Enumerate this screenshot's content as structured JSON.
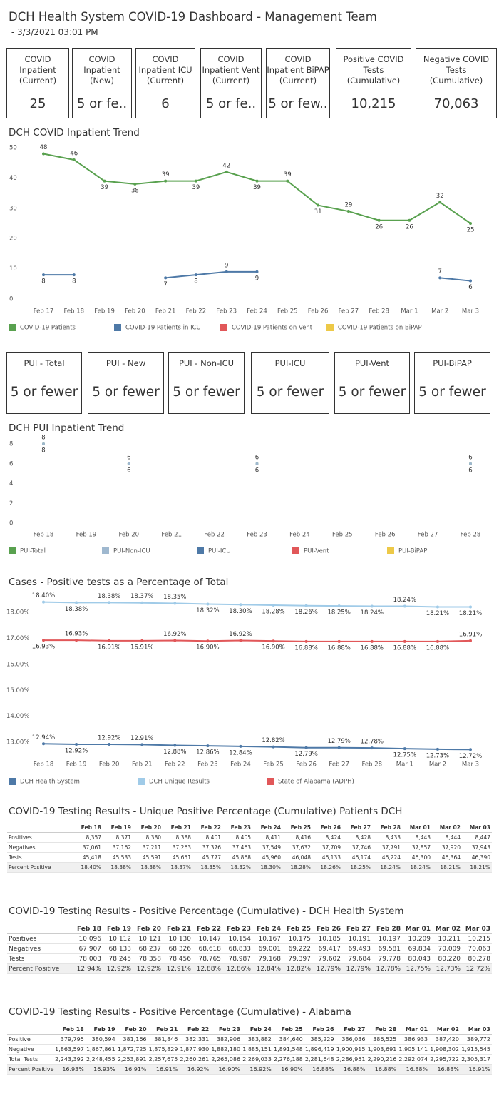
{
  "header": {
    "title": "DCH Health System COVID-19 Dashboard - Management Team",
    "subtitle": " - 3/3/2021 03:01 PM"
  },
  "kpi_cards": [
    {
      "label_lines": [
        "COVID",
        "Inpatient",
        "(Current)"
      ],
      "value": "25"
    },
    {
      "label_lines": [
        "COVID",
        "Inpatient",
        "(New)"
      ],
      "value": "5 or fe.."
    },
    {
      "label_lines": [
        "COVID",
        "Inpatient ICU",
        "(Current)"
      ],
      "value": "6"
    },
    {
      "label_lines": [
        "COVID",
        "Inpatient Vent",
        "(Current)"
      ],
      "value": "5 or fe.."
    },
    {
      "label_lines": [
        "COVID",
        "Inpatient BiPAP",
        "(Current)"
      ],
      "value": "5 or few.."
    },
    {
      "label_lines": [
        "Positive COVID",
        "Tests",
        "(Cumulative)"
      ],
      "value": "10,215"
    },
    {
      "label_lines": [
        "Negative COVID",
        "Tests",
        "(Cumulative)"
      ],
      "value": "70,063"
    }
  ],
  "pui_cards": [
    {
      "label": "PUI - Total",
      "value": "5 or fewer"
    },
    {
      "label": "PUI - New",
      "value": "5 or fewer"
    },
    {
      "label": "PUI - Non-ICU",
      "value": "5 or fewer"
    },
    {
      "label": "PUI-ICU",
      "value": "5 or fewer"
    },
    {
      "label": "PUI-Vent",
      "value": "5 or fewer"
    },
    {
      "label": "PUI-BiPAP",
      "value": "5 or fewer"
    }
  ],
  "chart_data": [
    {
      "type": "line",
      "title": "DCH COVID Inpatient Trend",
      "categories": [
        "Feb 17",
        "Feb 18",
        "Feb 19",
        "Feb 20",
        "Feb 21",
        "Feb 22",
        "Feb 23",
        "Feb 24",
        "Feb 25",
        "Feb 26",
        "Feb 27",
        "Feb 28",
        "Mar 1",
        "Mar 2",
        "Mar 3"
      ],
      "series": [
        {
          "name": "COVID-19 Patients",
          "color": "#59a14f",
          "values": [
            48,
            46,
            39,
            38,
            39,
            39,
            42,
            39,
            39,
            31,
            29,
            26,
            26,
            32,
            25
          ]
        },
        {
          "name": "COVID-19 Patients in ICU",
          "color": "#4e79a7",
          "values": [
            8,
            8,
            null,
            null,
            7,
            8,
            9,
            9,
            null,
            null,
            null,
            null,
            null,
            7,
            6
          ]
        },
        {
          "name": "COVID-19 Patients on Vent",
          "color": "#e15759",
          "values": [
            null,
            null,
            null,
            null,
            null,
            null,
            null,
            null,
            null,
            null,
            null,
            null,
            null,
            null,
            null
          ]
        },
        {
          "name": "COVID-19 Patients on BiPAP",
          "color": "#edc948",
          "values": [
            null,
            null,
            null,
            null,
            null,
            null,
            null,
            null,
            null,
            null,
            null,
            null,
            null,
            null,
            null
          ]
        }
      ],
      "ylim": [
        0,
        50
      ],
      "yticks": [
        0,
        10,
        20,
        30,
        40,
        50
      ],
      "grid": false
    },
    {
      "type": "line",
      "title": "DCH PUI Inpatient Trend",
      "categories": [
        "Feb 18",
        "Feb 19",
        "Feb 20",
        "Feb 21",
        "Feb 22",
        "Feb 23",
        "Feb 24",
        "Feb 25",
        "Feb 26",
        "Feb 27",
        "Feb 28"
      ],
      "series": [
        {
          "name": "PUI-Total",
          "color": "#59a14f",
          "values": [
            8,
            null,
            6,
            null,
            null,
            6,
            null,
            null,
            null,
            null,
            6
          ]
        },
        {
          "name": "PUI-Non-ICU",
          "color": "#9fb8cf",
          "values": [
            8,
            null,
            6,
            null,
            null,
            6,
            null,
            null,
            null,
            null,
            6
          ]
        },
        {
          "name": "PUI-ICU",
          "color": "#4e79a7",
          "values": [
            null,
            null,
            null,
            null,
            null,
            null,
            null,
            null,
            null,
            null,
            null
          ]
        },
        {
          "name": "PUI-Vent",
          "color": "#e15759",
          "values": [
            null,
            null,
            null,
            null,
            null,
            null,
            null,
            null,
            null,
            null,
            null
          ]
        },
        {
          "name": "PUI-BiPAP",
          "color": "#edc948",
          "values": [
            null,
            null,
            null,
            null,
            null,
            null,
            null,
            null,
            null,
            null,
            null
          ]
        }
      ],
      "ylim": [
        0,
        8
      ],
      "yticks": [
        0,
        2,
        4,
        6,
        8
      ],
      "grid": false
    },
    {
      "type": "line",
      "title": "Cases - Positive tests as a Percentage of Total",
      "categories": [
        "Feb 18",
        "Feb 19",
        "Feb 20",
        "Feb 21",
        "Feb 22",
        "Feb 23",
        "Feb 24",
        "Feb 25",
        "Feb 26",
        "Feb 27",
        "Feb 28",
        "Mar 1",
        "Mar 2",
        "Mar 3"
      ],
      "series": [
        {
          "name": "DCH Health System",
          "color": "#4e79a7",
          "values": [
            12.94,
            12.92,
            12.92,
            12.91,
            12.88,
            12.86,
            12.84,
            12.82,
            12.79,
            12.79,
            12.78,
            12.75,
            12.73,
            12.72
          ],
          "value_labels": [
            "12.94%",
            "12.92%",
            "12.92%",
            "12.91%",
            "12.88%",
            "12.86%",
            "12.84%",
            "12.82%",
            "12.79%",
            "12.79%",
            "12.78%",
            "12.75%",
            "12.73%",
            "12.72%"
          ]
        },
        {
          "name": "DCH Unique Results",
          "color": "#a0cbe8",
          "values": [
            18.4,
            18.38,
            18.38,
            18.37,
            18.35,
            18.32,
            18.3,
            18.28,
            18.26,
            18.25,
            18.24,
            18.24,
            18.21,
            18.21
          ],
          "value_labels": [
            "18.40%",
            "18.38%",
            "18.38%",
            "18.37%",
            "18.35%",
            "18.32%",
            "18.30%",
            "18.28%",
            "18.26%",
            "18.25%",
            "18.24%",
            "18.24%",
            "18.21%",
            "18.21%"
          ]
        },
        {
          "name": "State of Alabama (ADPH)",
          "color": "#e15759",
          "values": [
            16.93,
            16.93,
            16.91,
            16.91,
            16.92,
            16.9,
            16.92,
            16.9,
            16.88,
            16.88,
            16.88,
            16.88,
            16.88,
            16.91
          ],
          "value_labels": [
            "16.93%",
            "16.93%",
            "16.91%",
            "16.91%",
            "16.92%",
            "16.90%",
            "16.92%",
            "16.90%",
            "16.88%",
            "16.88%",
            "16.88%",
            "16.88%",
            "16.88%",
            "16.91%"
          ]
        }
      ],
      "ylim": [
        12.7,
        18.5
      ],
      "yticks": [
        {
          "value": 13,
          "label": "13.00%"
        },
        {
          "value": 14,
          "label": "14.00%"
        },
        {
          "value": 15,
          "label": "15.00%"
        },
        {
          "value": 16,
          "label": "16.00%"
        },
        {
          "value": 17,
          "label": "17.00%"
        },
        {
          "value": 18,
          "label": "18.00%"
        }
      ],
      "grid": false
    }
  ],
  "tables": [
    {
      "title": "COVID-19 Testing Results - Unique Positive Percentage (Cumulative) Patients DCH",
      "columns": [
        "Feb 18",
        "Feb 19",
        "Feb 20",
        "Feb 21",
        "Feb 22",
        "Feb 23",
        "Feb 24",
        "Feb 25",
        "Feb 26",
        "Feb 27",
        "Feb 28",
        "Mar 01",
        "Mar 02",
        "Mar 03"
      ],
      "rows": [
        {
          "label": "Positives",
          "cells": [
            "8,357",
            "8,371",
            "8,380",
            "8,388",
            "8,401",
            "8,405",
            "8,411",
            "8,416",
            "8,424",
            "8,428",
            "8,433",
            "8,443",
            "8,444",
            "8,447"
          ]
        },
        {
          "label": "Negatives",
          "cells": [
            "37,061",
            "37,162",
            "37,211",
            "37,263",
            "37,376",
            "37,463",
            "37,549",
            "37,632",
            "37,709",
            "37,746",
            "37,791",
            "37,857",
            "37,920",
            "37,943"
          ]
        },
        {
          "label": "Tests",
          "cells": [
            "45,418",
            "45,533",
            "45,591",
            "45,651",
            "45,777",
            "45,868",
            "45,960",
            "46,048",
            "46,133",
            "46,174",
            "46,224",
            "46,300",
            "46,364",
            "46,390"
          ]
        },
        {
          "label": "Percent Positive",
          "cells": [
            "18.40%",
            "18.38%",
            "18.38%",
            "18.37%",
            "18.35%",
            "18.32%",
            "18.30%",
            "18.28%",
            "18.26%",
            "18.25%",
            "18.24%",
            "18.24%",
            "18.21%",
            "18.21%"
          ]
        }
      ]
    },
    {
      "title": "COVID-19 Testing Results - Positive Percentage (Cumulative) - DCH Health System",
      "columns": [
        "Feb 18",
        "Feb 19",
        "Feb 20",
        "Feb 21",
        "Feb 22",
        "Feb 23",
        "Feb 24",
        "Feb 25",
        "Feb 26",
        "Feb 27",
        "Feb 28",
        "Mar 01",
        "Mar 02",
        "Mar 03"
      ],
      "rows": [
        {
          "label": "Positives",
          "cells": [
            "10,096",
            "10,112",
            "10,121",
            "10,130",
            "10,147",
            "10,154",
            "10,167",
            "10,175",
            "10,185",
            "10,191",
            "10,197",
            "10,209",
            "10,211",
            "10,215"
          ]
        },
        {
          "label": "Negatives",
          "cells": [
            "67,907",
            "68,133",
            "68,237",
            "68,326",
            "68,618",
            "68,833",
            "69,001",
            "69,222",
            "69,417",
            "69,493",
            "69,581",
            "69,834",
            "70,009",
            "70,063"
          ]
        },
        {
          "label": "Tests",
          "cells": [
            "78,003",
            "78,245",
            "78,358",
            "78,456",
            "78,765",
            "78,987",
            "79,168",
            "79,397",
            "79,602",
            "79,684",
            "79,778",
            "80,043",
            "80,220",
            "80,278"
          ]
        },
        {
          "label": "Percent Positive",
          "cells": [
            "12.94%",
            "12.92%",
            "12.92%",
            "12.91%",
            "12.88%",
            "12.86%",
            "12.84%",
            "12.82%",
            "12.79%",
            "12.79%",
            "12.78%",
            "12.75%",
            "12.73%",
            "12.72%"
          ]
        }
      ]
    },
    {
      "title": "COVID-19 Testing Results - Positive Percentage (Cumulative) - Alabama",
      "columns": [
        "Feb 18",
        "Feb 19",
        "Feb 20",
        "Feb 21",
        "Feb 22",
        "Feb 23",
        "Feb 24",
        "Feb 25",
        "Feb 26",
        "Feb 27",
        "Feb 28",
        "Mar 01",
        "Mar 02",
        "Mar 03"
      ],
      "rows": [
        {
          "label": "Positive",
          "cells": [
            "379,795",
            "380,594",
            "381,166",
            "381,846",
            "382,331",
            "382,906",
            "383,882",
            "384,640",
            "385,229",
            "386,036",
            "386,525",
            "386,933",
            "387,420",
            "389,772"
          ]
        },
        {
          "label": "Negative",
          "cells": [
            "1,863,597",
            "1,867,861",
            "1,872,725",
            "1,875,829",
            "1,877,930",
            "1,882,180",
            "1,885,151",
            "1,891,548",
            "1,896,419",
            "1,900,915",
            "1,903,691",
            "1,905,141",
            "1,908,302",
            "1,915,545"
          ]
        },
        {
          "label": "Total Tests",
          "cells": [
            "2,243,392",
            "2,248,455",
            "2,253,891",
            "2,257,675",
            "2,260,261",
            "2,265,086",
            "2,269,033",
            "2,276,188",
            "2,281,648",
            "2,286,951",
            "2,290,216",
            "2,292,074",
            "2,295,722",
            "2,305,317"
          ]
        },
        {
          "label": "Percent Positive",
          "cells": [
            "16.93%",
            "16.93%",
            "16.91%",
            "16.91%",
            "16.92%",
            "16.90%",
            "16.92%",
            "16.90%",
            "16.88%",
            "16.88%",
            "16.88%",
            "16.88%",
            "16.88%",
            "16.91%"
          ]
        }
      ]
    }
  ]
}
